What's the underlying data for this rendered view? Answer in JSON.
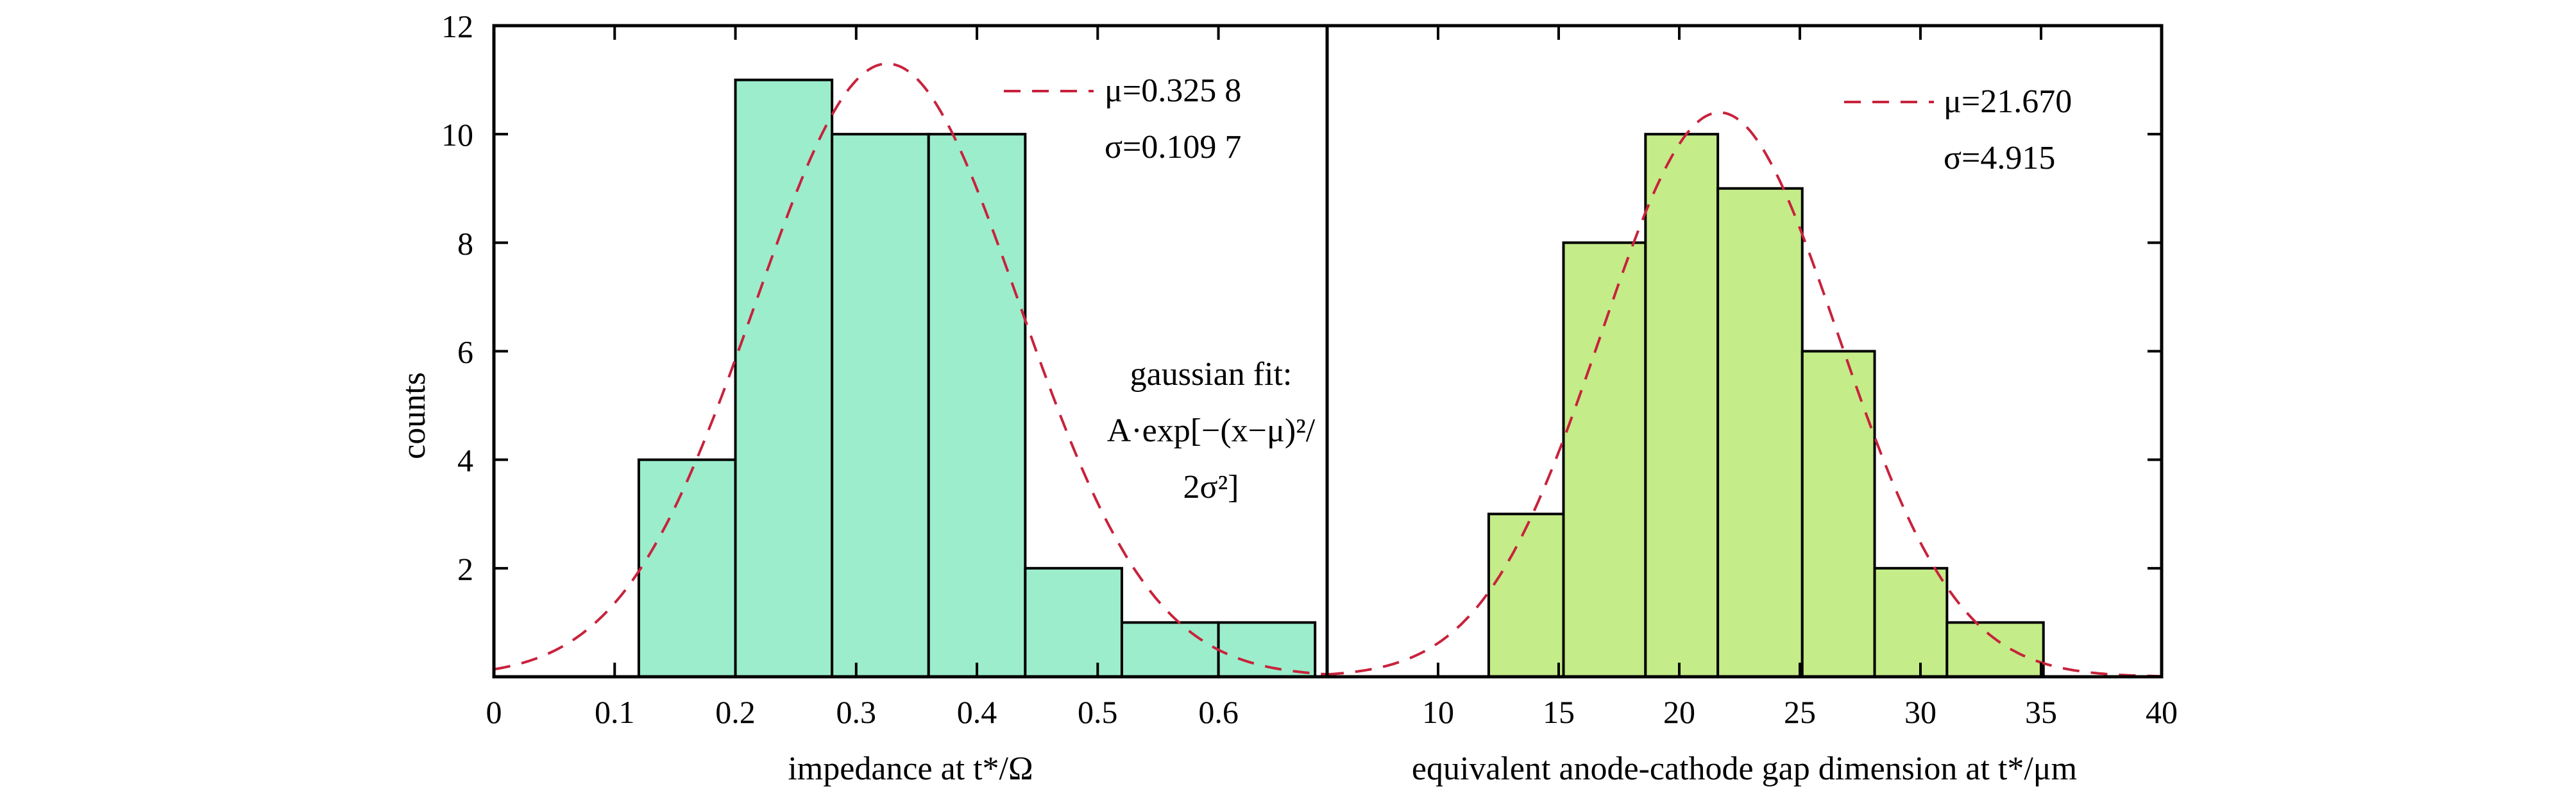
{
  "y_axis_label": "counts",
  "y_ticks": [
    "2",
    "4",
    "6",
    "8",
    "10",
    "12"
  ],
  "fit_note": [
    "gaussian fit:",
    "A·exp[−(x−μ)²/",
    "2σ²]"
  ],
  "colors": {
    "bar_left": "#9cedcc",
    "bar_right": "#c4ec88",
    "fit_curve": "#c8223c",
    "axis": "#000000"
  },
  "chart_data": [
    {
      "type": "bar",
      "title": "",
      "xlabel": "impedance at t*/Ω",
      "ylabel": "counts",
      "xlim": [
        0,
        0.69
      ],
      "ylim": [
        0,
        12
      ],
      "x_ticks": [
        "0",
        "0.1",
        "0.2",
        "0.3",
        "0.4",
        "0.5",
        "0.6"
      ],
      "bin_edges": [
        0.12,
        0.2,
        0.28,
        0.36,
        0.44,
        0.52,
        0.6,
        0.68
      ],
      "values": [
        4,
        11,
        10,
        10,
        2,
        1,
        1
      ],
      "fit": {
        "type": "gaussian",
        "amplitude": 11.3,
        "mu": 0.3258,
        "sigma": 0.1097
      },
      "legend": {
        "mu_label": "μ=0.325 8",
        "sigma_label": "σ=0.109 7",
        "position": "top-right"
      }
    },
    {
      "type": "bar",
      "title": "",
      "xlabel": "equivalent anode-cathode gap dimension at t*/μm",
      "ylabel": "counts",
      "xlim": [
        5.4,
        40
      ],
      "ylim": [
        0,
        12
      ],
      "x_ticks": [
        "10",
        "15",
        "20",
        "25",
        "30",
        "35",
        "40"
      ],
      "bin_edges": [
        12.1,
        15.2,
        18.6,
        21.6,
        25.1,
        28.1,
        31.1,
        35.1
      ],
      "values": [
        3,
        8,
        10,
        9,
        6,
        2,
        1
      ],
      "fit": {
        "type": "gaussian",
        "amplitude": 10.4,
        "mu": 21.67,
        "sigma": 4.915
      },
      "legend": {
        "mu_label": "μ=21.670",
        "sigma_label": "σ=4.915",
        "position": "top-right"
      }
    }
  ]
}
